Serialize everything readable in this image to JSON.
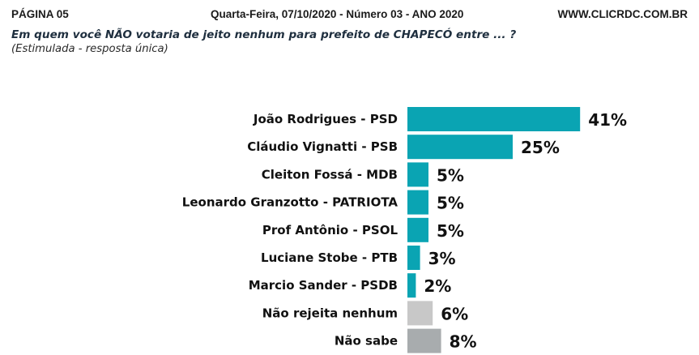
{
  "header": {
    "page": "PÁGINA 05",
    "date": "Quarta-Feira, 07/10/2020 - Número 03 - ANO 2020",
    "site": "WWW.CLICRDC.COM.BR"
  },
  "question": "Em quem você NÃO votaria de jeito nenhum para prefeito de CHAPECÓ entre ... ?",
  "note": "(Estimulada - resposta única)",
  "colors": {
    "candidate": "#0aa4b3",
    "no_reject": "#c8c8c8",
    "dont_know": "#a8acae"
  },
  "chart_data": {
    "type": "bar",
    "orientation": "horizontal",
    "categories": [
      "João Rodrigues - PSD",
      "Cláudio Vignatti - PSB",
      "Cleiton Fossá - MDB",
      "Leonardo Granzotto - PATRIOTA",
      "Prof Antônio - PSOL",
      "Luciane Stobe - PTB",
      "Marcio Sander - PSDB",
      "Não rejeita nenhum",
      "Não sabe"
    ],
    "values": [
      41,
      25,
      5,
      5,
      5,
      3,
      2,
      6,
      8
    ],
    "value_labels": [
      "41%",
      "25%",
      "5%",
      "5%",
      "5%",
      "3%",
      "2%",
      "6%",
      "8%"
    ],
    "bar_colors": [
      "candidate",
      "candidate",
      "candidate",
      "candidate",
      "candidate",
      "candidate",
      "candidate",
      "no_reject",
      "dont_know"
    ],
    "unit": "%",
    "grid": false
  }
}
